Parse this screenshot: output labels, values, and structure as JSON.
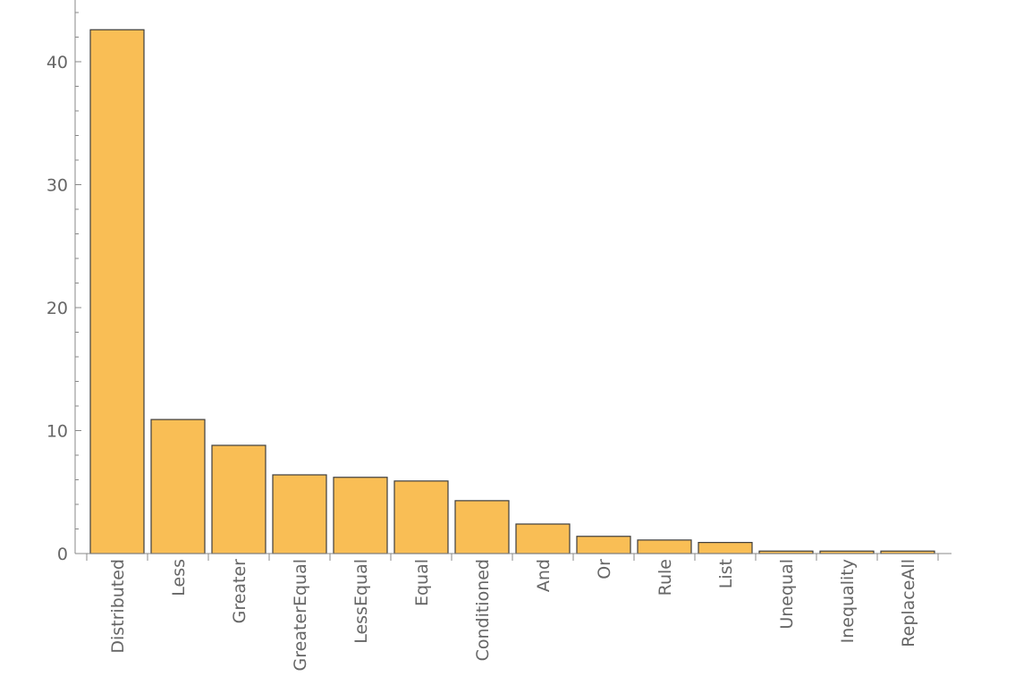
{
  "chart_data": {
    "type": "bar",
    "title": "",
    "xlabel": "",
    "ylabel": "",
    "categories": [
      "Distributed",
      "Less",
      "Greater",
      "GreaterEqual",
      "LessEqual",
      "Equal",
      "Conditioned",
      "And",
      "Or",
      "Rule",
      "List",
      "Unequal",
      "Inequality",
      "ReplaceAll"
    ],
    "values": [
      42.6,
      10.9,
      8.8,
      6.4,
      6.2,
      5.9,
      4.3,
      2.4,
      1.4,
      1.1,
      0.9,
      0.2,
      0.2,
      0.2
    ],
    "ylim": [
      0,
      45
    ],
    "yticks": [
      0,
      10,
      20,
      30,
      40
    ],
    "grid": false,
    "colors": {
      "bar_fill": "#F9BE55",
      "bar_edge": "#3d3d3d",
      "axis": "#888888",
      "tick_text": "#666666"
    }
  }
}
